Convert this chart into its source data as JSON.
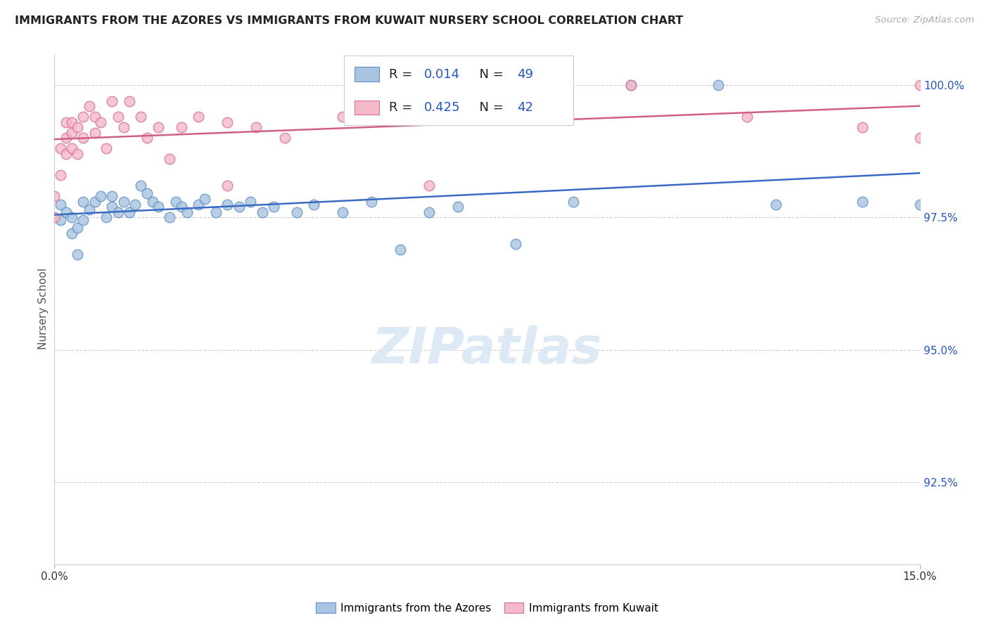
{
  "title": "IMMIGRANTS FROM THE AZORES VS IMMIGRANTS FROM KUWAIT NURSERY SCHOOL CORRELATION CHART",
  "source": "Source: ZipAtlas.com",
  "ylabel": "Nursery School",
  "ytick_labels": [
    "92.5%",
    "95.0%",
    "97.5%",
    "100.0%"
  ],
  "ytick_values": [
    0.925,
    0.95,
    0.975,
    1.0
  ],
  "xmin": 0.0,
  "xmax": 0.15,
  "ymin": 0.9095,
  "ymax": 1.006,
  "color_azores": "#a8c4e0",
  "color_kuwait": "#f4b8c8",
  "edge_azores": "#6090c8",
  "edge_kuwait": "#d87090",
  "line_azores": "#3a6bc4",
  "line_kuwait": "#d06080",
  "legend_text_color": "#222222",
  "legend_val_color": "#2255cc",
  "azores_x": [
    0.001,
    0.001,
    0.002,
    0.003,
    0.003,
    0.004,
    0.004,
    0.005,
    0.005,
    0.006,
    0.007,
    0.008,
    0.009,
    0.01,
    0.01,
    0.011,
    0.012,
    0.013,
    0.014,
    0.015,
    0.016,
    0.017,
    0.018,
    0.02,
    0.021,
    0.022,
    0.023,
    0.025,
    0.026,
    0.028,
    0.03,
    0.032,
    0.034,
    0.036,
    0.038,
    0.042,
    0.045,
    0.05,
    0.055,
    0.06,
    0.065,
    0.07,
    0.08,
    0.09,
    0.1,
    0.115,
    0.125,
    0.14,
    0.15
  ],
  "azores_y": [
    0.9775,
    0.9745,
    0.976,
    0.972,
    0.975,
    0.968,
    0.973,
    0.9745,
    0.978,
    0.9765,
    0.978,
    0.979,
    0.975,
    0.977,
    0.979,
    0.976,
    0.978,
    0.976,
    0.9775,
    0.981,
    0.9795,
    0.978,
    0.977,
    0.975,
    0.978,
    0.977,
    0.976,
    0.9775,
    0.9785,
    0.976,
    0.9775,
    0.977,
    0.978,
    0.976,
    0.977,
    0.976,
    0.9775,
    0.976,
    0.978,
    0.969,
    0.976,
    0.977,
    0.97,
    0.978,
    1.0,
    1.0,
    0.9775,
    0.978,
    0.9775
  ],
  "kuwait_x": [
    0.0,
    0.0,
    0.001,
    0.001,
    0.002,
    0.002,
    0.002,
    0.003,
    0.003,
    0.003,
    0.004,
    0.004,
    0.005,
    0.005,
    0.006,
    0.007,
    0.007,
    0.008,
    0.009,
    0.01,
    0.011,
    0.012,
    0.013,
    0.015,
    0.016,
    0.018,
    0.02,
    0.022,
    0.025,
    0.03,
    0.035,
    0.04,
    0.05,
    0.06,
    0.065,
    0.08,
    0.1,
    0.12,
    0.14,
    0.15,
    0.15,
    0.03
  ],
  "kuwait_y": [
    0.979,
    0.975,
    0.988,
    0.983,
    0.993,
    0.99,
    0.987,
    0.993,
    0.991,
    0.988,
    0.992,
    0.987,
    0.994,
    0.99,
    0.996,
    0.994,
    0.991,
    0.993,
    0.988,
    0.997,
    0.994,
    0.992,
    0.997,
    0.994,
    0.99,
    0.992,
    0.986,
    0.992,
    0.994,
    0.993,
    0.992,
    0.99,
    0.994,
    0.997,
    0.981,
    1.0,
    1.0,
    0.994,
    0.992,
    0.99,
    1.0,
    0.981
  ]
}
